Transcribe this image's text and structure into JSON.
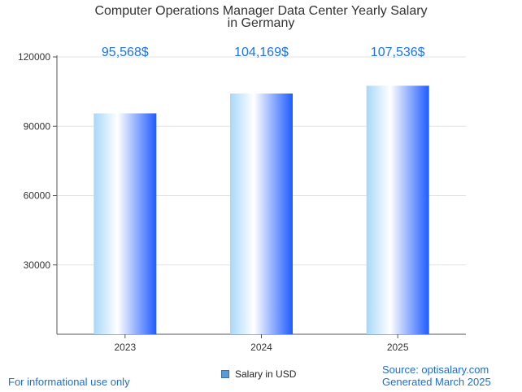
{
  "chart_data": {
    "type": "bar",
    "title_lines": [
      "Computer Operations Manager Data Center Yearly Salary",
      "in Germany"
    ],
    "categories": [
      "2023",
      "2024",
      "2025"
    ],
    "series": [
      {
        "name": "Salary in USD",
        "values": [
          95568,
          104169,
          107536
        ]
      }
    ],
    "data_labels": [
      "95,568$",
      "104,169$",
      "107,536$"
    ],
    "y_ticks": [
      "30000",
      "60000",
      "90000",
      "120000"
    ],
    "ylim": [
      0,
      120000
    ],
    "grid": true,
    "legend_position": "bottom-center",
    "bar_gradient": [
      "#a8d8f8",
      "#ffffff",
      "#1e5cff"
    ]
  },
  "footer": {
    "left": "For informational use only",
    "source": "Source: optisalary.com",
    "generated": "Generated March 2025"
  }
}
